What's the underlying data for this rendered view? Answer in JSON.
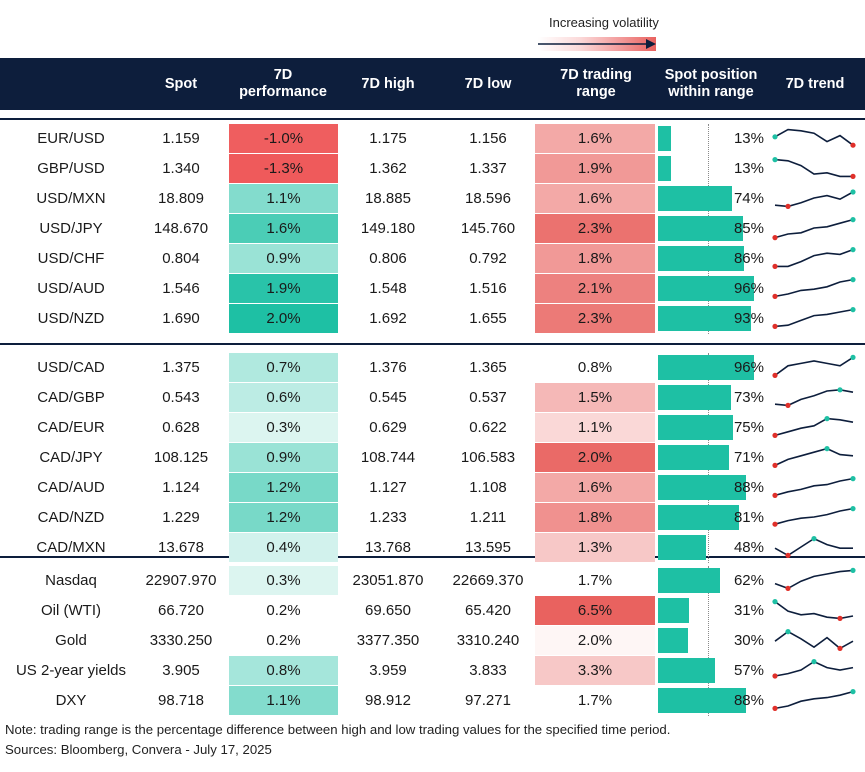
{
  "legend": {
    "label": "Increasing volatility"
  },
  "header": {
    "spot": "Spot",
    "perf_line1": "7D",
    "perf_line2": "performance",
    "high": "7D high",
    "low": "7D low",
    "range_line1": "7D trading",
    "range_line2": "range",
    "pos_line1": "Spot position",
    "pos_line2": "within range",
    "trend": "7D trend"
  },
  "colors": {
    "navy": "#0d1e3c",
    "teal": "#1ec0a4",
    "red": "#e9625f",
    "marker_low": "#e0302a",
    "marker_high": "#1ec0a4"
  },
  "chart_data": {
    "type": "table",
    "columns": [
      "Spot",
      "7D performance",
      "7D high",
      "7D low",
      "7D trading range",
      "Spot position within range",
      "7D trend"
    ],
    "groups": [
      {
        "rows": [
          {
            "pair": "EUR/USD",
            "spot": "1.159",
            "perf": "-1.0%",
            "perf_val": -1.0,
            "high": "1.175",
            "low": "1.156",
            "range": "1.6%",
            "range_val": 1.6,
            "range_shade": 0.55,
            "pos": "13%",
            "pos_val": 13,
            "trend": [
              0.55,
              0.85,
              0.8,
              0.7,
              0.35,
              0.6,
              0.2
            ],
            "tmax": 0,
            "tmin": 6
          },
          {
            "pair": "GBP/USD",
            "spot": "1.340",
            "perf": "-1.3%",
            "perf_val": -1.3,
            "high": "1.362",
            "low": "1.337",
            "range": "1.9%",
            "range_val": 1.9,
            "range_shade": 0.65,
            "pos": "13%",
            "pos_val": 13,
            "trend": [
              0.85,
              0.8,
              0.6,
              0.25,
              0.3,
              0.15,
              0.15
            ],
            "tmax": 0,
            "tmin": 6
          },
          {
            "pair": "USD/MXN",
            "spot": "18.809",
            "perf": "1.1%",
            "perf_val": 1.1,
            "high": "18.885",
            "low": "18.596",
            "range": "1.6%",
            "range_val": 1.6,
            "range_shade": 0.55,
            "pos": "74%",
            "pos_val": 74,
            "trend": [
              0.2,
              0.15,
              0.3,
              0.5,
              0.6,
              0.45,
              0.75
            ],
            "tmax": 6,
            "tmin": 1
          },
          {
            "pair": "USD/JPY",
            "spot": "148.670",
            "perf": "1.6%",
            "perf_val": 1.6,
            "high": "149.180",
            "low": "145.760",
            "range": "2.3%",
            "range_val": 2.3,
            "range_shade": 0.9,
            "pos": "85%",
            "pos_val": 85,
            "trend": [
              0.1,
              0.25,
              0.3,
              0.5,
              0.55,
              0.7,
              0.85
            ],
            "tmax": 6,
            "tmin": 0
          },
          {
            "pair": "USD/CHF",
            "spot": "0.804",
            "perf": "0.9%",
            "perf_val": 0.9,
            "high": "0.806",
            "low": "0.792",
            "range": "1.8%",
            "range_val": 1.8,
            "range_shade": 0.65,
            "pos": "86%",
            "pos_val": 86,
            "trend": [
              0.15,
              0.15,
              0.35,
              0.6,
              0.7,
              0.65,
              0.85
            ],
            "tmax": 6,
            "tmin": 0
          },
          {
            "pair": "USD/AUD",
            "spot": "1.546",
            "perf": "1.9%",
            "perf_val": 1.9,
            "high": "1.548",
            "low": "1.516",
            "range": "2.1%",
            "range_val": 2.1,
            "range_shade": 0.8,
            "pos": "96%",
            "pos_val": 96,
            "trend": [
              0.15,
              0.25,
              0.4,
              0.45,
              0.55,
              0.75,
              0.85
            ],
            "tmax": 6,
            "tmin": 0
          },
          {
            "pair": "USD/NZD",
            "spot": "1.690",
            "perf": "2.0%",
            "perf_val": 2.0,
            "high": "1.692",
            "low": "1.655",
            "range": "2.3%",
            "range_val": 2.3,
            "range_shade": 0.85,
            "pos": "93%",
            "pos_val": 93,
            "trend": [
              0.15,
              0.2,
              0.4,
              0.6,
              0.65,
              0.75,
              0.85
            ],
            "tmax": 6,
            "tmin": 0
          }
        ]
      },
      {
        "rows": [
          {
            "pair": "USD/CAD",
            "spot": "1.375",
            "perf": "0.7%",
            "perf_val": 0.7,
            "high": "1.376",
            "low": "1.365",
            "range": "0.8%",
            "range_val": 0.8,
            "range_shade": 0.0,
            "pos": "96%",
            "pos_val": 96,
            "trend": [
              0.15,
              0.55,
              0.65,
              0.75,
              0.65,
              0.55,
              0.9
            ],
            "tmax": 6,
            "tmin": 0
          },
          {
            "pair": "CAD/GBP",
            "spot": "0.543",
            "perf": "0.6%",
            "perf_val": 0.6,
            "high": "0.545",
            "low": "0.537",
            "range": "1.5%",
            "range_val": 1.5,
            "range_shade": 0.45,
            "pos": "73%",
            "pos_val": 73,
            "trend": [
              0.2,
              0.15,
              0.4,
              0.55,
              0.75,
              0.8,
              0.7
            ],
            "tmax": 5,
            "tmin": 1
          },
          {
            "pair": "CAD/EUR",
            "spot": "0.628",
            "perf": "0.3%",
            "perf_val": 0.3,
            "high": "0.629",
            "low": "0.622",
            "range": "1.1%",
            "range_val": 1.1,
            "range_shade": 0.25,
            "pos": "75%",
            "pos_val": 75,
            "trend": [
              0.15,
              0.3,
              0.45,
              0.55,
              0.85,
              0.8,
              0.7
            ],
            "tmax": 4,
            "tmin": 0
          },
          {
            "pair": "CAD/JPY",
            "spot": "108.125",
            "perf": "0.9%",
            "perf_val": 0.9,
            "high": "108.744",
            "low": "106.583",
            "range": "2.0%",
            "range_val": 2.0,
            "range_shade": 0.95,
            "pos": "71%",
            "pos_val": 71,
            "trend": [
              0.15,
              0.4,
              0.55,
              0.7,
              0.85,
              0.6,
              0.55
            ],
            "tmax": 4,
            "tmin": 0
          },
          {
            "pair": "CAD/AUD",
            "spot": "1.124",
            "perf": "1.2%",
            "perf_val": 1.2,
            "high": "1.127",
            "low": "1.108",
            "range": "1.6%",
            "range_val": 1.6,
            "range_shade": 0.55,
            "pos": "88%",
            "pos_val": 88,
            "trend": [
              0.15,
              0.3,
              0.4,
              0.55,
              0.6,
              0.75,
              0.85
            ],
            "tmax": 6,
            "tmin": 0
          },
          {
            "pair": "CAD/NZD",
            "spot": "1.229",
            "perf": "1.2%",
            "perf_val": 1.2,
            "high": "1.233",
            "low": "1.211",
            "range": "1.8%",
            "range_val": 1.8,
            "range_shade": 0.7,
            "pos": "81%",
            "pos_val": 81,
            "trend": [
              0.2,
              0.35,
              0.45,
              0.5,
              0.6,
              0.75,
              0.85
            ],
            "tmax": 6,
            "tmin": 0
          },
          {
            "pair": "CAD/MXN",
            "spot": "13.678",
            "perf": "0.4%",
            "perf_val": 0.4,
            "high": "13.768",
            "low": "13.595",
            "range": "1.3%",
            "range_val": 1.3,
            "range_shade": 0.35,
            "pos": "48%",
            "pos_val": 48,
            "trend": [
              0.45,
              0.15,
              0.5,
              0.85,
              0.6,
              0.45,
              0.45
            ],
            "tmax": 3,
            "tmin": 1
          }
        ]
      },
      {
        "rows": [
          {
            "pair": "Nasdaq",
            "spot": "22907.970",
            "perf": "0.3%",
            "perf_val": 0.3,
            "high": "23051.870",
            "low": "22669.370",
            "range": "1.7%",
            "range_val": 1.7,
            "range_shade": 0.0,
            "pos": "62%",
            "pos_val": 62,
            "trend": [
              0.35,
              0.15,
              0.45,
              0.65,
              0.75,
              0.85,
              0.9
            ],
            "tmax": 6,
            "tmin": 1
          },
          {
            "pair": "Oil (WTI)",
            "spot": "66.720",
            "perf": "0.2%",
            "perf_val": 0.2,
            "high": "69.650",
            "low": "65.420",
            "range": "6.5%",
            "range_val": 6.5,
            "range_shade": 1.0,
            "pos": "31%",
            "pos_val": 31,
            "trend": [
              0.85,
              0.45,
              0.3,
              0.35,
              0.2,
              0.15,
              0.25
            ],
            "tmax": 0,
            "tmin": 5
          },
          {
            "pair": "Gold",
            "spot": "3330.250",
            "perf": "0.2%",
            "perf_val": 0.2,
            "high": "3377.350",
            "low": "3310.240",
            "range": "2.0%",
            "range_val": 2.0,
            "range_shade": 0.06,
            "pos": "30%",
            "pos_val": 30,
            "trend": [
              0.45,
              0.85,
              0.55,
              0.2,
              0.6,
              0.15,
              0.45
            ],
            "tmax": 1,
            "tmin": 5
          },
          {
            "pair": "US 2-year yields",
            "spot": "3.905",
            "perf": "0.8%",
            "perf_val": 0.8,
            "high": "3.959",
            "low": "3.833",
            "range": "3.3%",
            "range_val": 3.3,
            "range_shade": 0.35,
            "pos": "57%",
            "pos_val": 57,
            "trend": [
              0.25,
              0.35,
              0.5,
              0.85,
              0.6,
              0.5,
              0.6
            ],
            "tmax": 3,
            "tmin": 0
          },
          {
            "pair": "DXY",
            "spot": "98.718",
            "perf": "1.1%",
            "perf_val": 1.1,
            "high": "98.912",
            "low": "97.271",
            "range": "1.7%",
            "range_val": 1.7,
            "range_shade": 0.0,
            "pos": "88%",
            "pos_val": 88,
            "trend": [
              0.15,
              0.25,
              0.45,
              0.55,
              0.6,
              0.7,
              0.85
            ],
            "tmax": 6,
            "tmin": 0
          }
        ]
      }
    ]
  },
  "footer": {
    "note": "Note: trading range is the percentage difference between high and low trading values for the specified time period.",
    "sources": "Sources: Bloomberg, Convera - July 17, 2025"
  }
}
